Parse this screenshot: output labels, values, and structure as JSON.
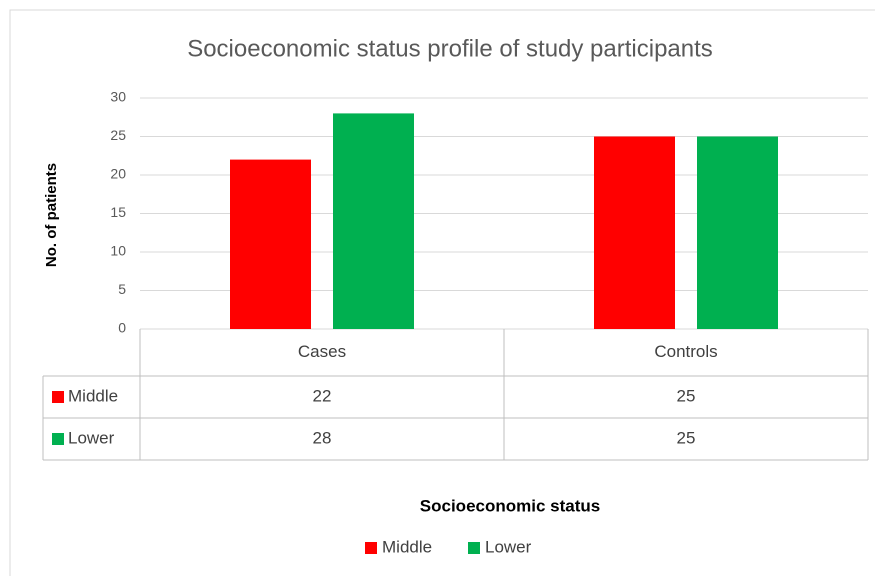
{
  "chart_data": {
    "type": "bar",
    "title": "Socioeconomic status profile of study participants",
    "x_label": "Socioeconomic status",
    "y_label": "No. of patients",
    "categories": [
      "Cases",
      "Controls"
    ],
    "series": [
      {
        "name": "Middle",
        "color": "#ff0000",
        "values": [
          22,
          25
        ]
      },
      {
        "name": "Lower",
        "color": "#00b050",
        "values": [
          28,
          25
        ]
      }
    ],
    "ylim": [
      0,
      30
    ],
    "yticks": [
      0,
      5,
      10,
      15,
      20,
      25,
      30
    ],
    "grid": true,
    "legend": "bottom"
  }
}
